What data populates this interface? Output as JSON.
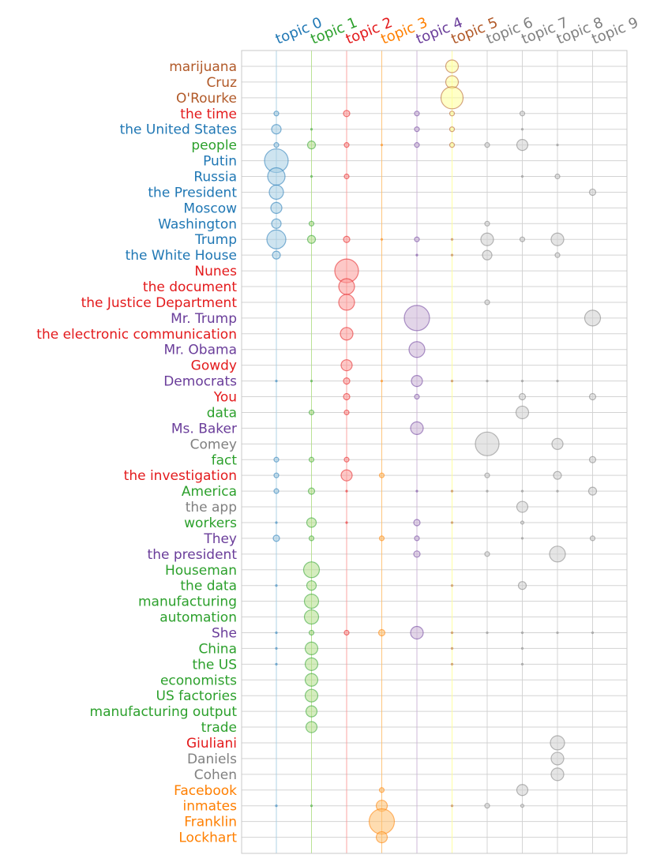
{
  "chart_data": {
    "type": "scatter",
    "grid": true,
    "topics": [
      {
        "label": "topic 0",
        "color": "#1f77b4",
        "fill": "#a6cee3"
      },
      {
        "label": "topic 1",
        "color": "#2ca02c",
        "fill": "#b2df8a"
      },
      {
        "label": "topic 2",
        "color": "#e31a1c",
        "fill": "#fb9a99"
      },
      {
        "label": "topic 3",
        "color": "#ff7f00",
        "fill": "#fdbf6f"
      },
      {
        "label": "topic 4",
        "color": "#6a3d9a",
        "fill": "#cab2d6"
      },
      {
        "label": "topic 5",
        "color": "#b15928",
        "fill": "#ffff99"
      },
      {
        "label": "topic 6",
        "color": "#808080",
        "fill": "#d0d0d0"
      },
      {
        "label": "topic 7",
        "color": "#808080",
        "fill": "#d0d0d0"
      },
      {
        "label": "topic 8",
        "color": "#808080",
        "fill": "#d0d0d0"
      },
      {
        "label": "topic 9",
        "color": "#808080",
        "fill": "#d0d0d0"
      }
    ],
    "terms": [
      {
        "label": "marijuana",
        "topic": 5,
        "weights": [
          0,
          0,
          0,
          0,
          0,
          8,
          0,
          0,
          0,
          0
        ]
      },
      {
        "label": "Cruz",
        "topic": 5,
        "weights": [
          0,
          0,
          0,
          0,
          0,
          8,
          0,
          0,
          0,
          0
        ]
      },
      {
        "label": "O'Rourke",
        "topic": 5,
        "weights": [
          0,
          0,
          0,
          0,
          0,
          14,
          0,
          0,
          0,
          0
        ]
      },
      {
        "label": "the time",
        "topic": 2,
        "weights": [
          3,
          0,
          4,
          0,
          3,
          3,
          0,
          3,
          0,
          0
        ]
      },
      {
        "label": "the United States",
        "topic": 0,
        "weights": [
          6,
          1,
          0,
          0,
          3,
          3,
          0,
          1,
          0,
          0
        ]
      },
      {
        "label": "people",
        "topic": 1,
        "weights": [
          3,
          5,
          3,
          1,
          3,
          3,
          3,
          7,
          1,
          0
        ]
      },
      {
        "label": "Putin",
        "topic": 0,
        "weights": [
          15,
          0,
          0,
          0,
          0,
          0,
          0,
          0,
          0,
          0
        ]
      },
      {
        "label": "Russia",
        "topic": 0,
        "weights": [
          11,
          1,
          3,
          0,
          0,
          0,
          0,
          1,
          3,
          0
        ]
      },
      {
        "label": "the President",
        "topic": 0,
        "weights": [
          9,
          0,
          0,
          0,
          0,
          0,
          0,
          0,
          0,
          4
        ]
      },
      {
        "label": "Moscow",
        "topic": 0,
        "weights": [
          7,
          0,
          0,
          0,
          0,
          0,
          0,
          0,
          0,
          0
        ]
      },
      {
        "label": "Washington",
        "topic": 0,
        "weights": [
          6,
          3,
          0,
          0,
          0,
          0,
          3,
          0,
          0,
          0
        ]
      },
      {
        "label": "Trump",
        "topic": 0,
        "weights": [
          12,
          5,
          4,
          1,
          3,
          1,
          8,
          3,
          8,
          0
        ]
      },
      {
        "label": "the White House",
        "topic": 0,
        "weights": [
          5,
          0,
          0,
          0,
          1,
          1,
          6,
          0,
          3,
          0
        ]
      },
      {
        "label": "Nunes",
        "topic": 2,
        "weights": [
          0,
          0,
          15,
          0,
          0,
          0,
          0,
          0,
          0,
          0
        ]
      },
      {
        "label": "the document",
        "topic": 2,
        "weights": [
          0,
          0,
          10,
          0,
          0,
          0,
          0,
          0,
          0,
          0
        ]
      },
      {
        "label": "the Justice Department",
        "topic": 2,
        "weights": [
          0,
          0,
          10,
          0,
          0,
          0,
          3,
          0,
          0,
          0
        ]
      },
      {
        "label": "Mr. Trump",
        "topic": 4,
        "weights": [
          0,
          0,
          0,
          0,
          16,
          0,
          0,
          0,
          0,
          10
        ]
      },
      {
        "label": "the electronic communication",
        "topic": 2,
        "weights": [
          0,
          0,
          8,
          0,
          0,
          0,
          0,
          0,
          0,
          0
        ]
      },
      {
        "label": "Mr. Obama",
        "topic": 4,
        "weights": [
          0,
          0,
          0,
          0,
          10,
          0,
          0,
          0,
          0,
          0
        ]
      },
      {
        "label": "Gowdy",
        "topic": 2,
        "weights": [
          0,
          0,
          7,
          0,
          0,
          0,
          0,
          0,
          0,
          0
        ]
      },
      {
        "label": "Democrats",
        "topic": 4,
        "weights": [
          1,
          1,
          4,
          1,
          7,
          1,
          1,
          1,
          1,
          0
        ]
      },
      {
        "label": "You",
        "topic": 2,
        "weights": [
          0,
          0,
          4,
          0,
          3,
          0,
          0,
          4,
          0,
          4
        ]
      },
      {
        "label": "data",
        "topic": 1,
        "weights": [
          0,
          3,
          3,
          0,
          0,
          0,
          0,
          8,
          0,
          0
        ]
      },
      {
        "label": "Ms. Baker",
        "topic": 4,
        "weights": [
          0,
          0,
          0,
          0,
          8,
          0,
          0,
          0,
          0,
          0
        ]
      },
      {
        "label": "Comey",
        "topic": 6,
        "weights": [
          0,
          0,
          0,
          0,
          0,
          0,
          15,
          0,
          7,
          0
        ]
      },
      {
        "label": "fact",
        "topic": 1,
        "weights": [
          3,
          3,
          3,
          0,
          0,
          0,
          0,
          0,
          0,
          4
        ]
      },
      {
        "label": "the investigation",
        "topic": 2,
        "weights": [
          3,
          0,
          7,
          3,
          0,
          0,
          3,
          0,
          5,
          0
        ]
      },
      {
        "label": "America",
        "topic": 1,
        "weights": [
          3,
          4,
          1,
          0,
          1,
          1,
          1,
          1,
          1,
          5
        ]
      },
      {
        "label": "the app",
        "topic": 6,
        "weights": [
          0,
          0,
          0,
          0,
          0,
          0,
          0,
          7,
          0,
          0
        ]
      },
      {
        "label": "workers",
        "topic": 1,
        "weights": [
          1,
          6,
          1,
          0,
          4,
          1,
          0,
          2,
          0,
          0
        ]
      },
      {
        "label": "They",
        "topic": 4,
        "weights": [
          4,
          3,
          0,
          3,
          3,
          0,
          0,
          1,
          0,
          3
        ]
      },
      {
        "label": "the president",
        "topic": 4,
        "weights": [
          0,
          0,
          0,
          0,
          4,
          0,
          3,
          0,
          10,
          0
        ]
      },
      {
        "label": "Houseman",
        "topic": 1,
        "weights": [
          0,
          10,
          0,
          0,
          0,
          0,
          0,
          0,
          0,
          0
        ]
      },
      {
        "label": "the data",
        "topic": 1,
        "weights": [
          1,
          6,
          0,
          0,
          0,
          1,
          0,
          5,
          0,
          0
        ]
      },
      {
        "label": "manufacturing",
        "topic": 1,
        "weights": [
          0,
          9,
          0,
          0,
          0,
          0,
          0,
          0,
          0,
          0
        ]
      },
      {
        "label": "automation",
        "topic": 1,
        "weights": [
          0,
          9,
          0,
          0,
          0,
          0,
          0,
          0,
          0,
          0
        ]
      },
      {
        "label": "She",
        "topic": 4,
        "weights": [
          1,
          3,
          3,
          4,
          8,
          1,
          1,
          1,
          1,
          1
        ]
      },
      {
        "label": "China",
        "topic": 1,
        "weights": [
          1,
          8,
          0,
          0,
          0,
          1,
          0,
          1,
          0,
          0
        ]
      },
      {
        "label": "the US",
        "topic": 1,
        "weights": [
          1,
          8,
          0,
          0,
          0,
          1,
          0,
          1,
          0,
          0
        ]
      },
      {
        "label": "economists",
        "topic": 1,
        "weights": [
          0,
          8,
          0,
          0,
          0,
          0,
          0,
          0,
          0,
          0
        ]
      },
      {
        "label": "US factories",
        "topic": 1,
        "weights": [
          0,
          8,
          0,
          0,
          0,
          0,
          0,
          0,
          0,
          0
        ]
      },
      {
        "label": "manufacturing output",
        "topic": 1,
        "weights": [
          0,
          7,
          0,
          0,
          0,
          0,
          0,
          0,
          0,
          0
        ]
      },
      {
        "label": "trade",
        "topic": 1,
        "weights": [
          0,
          7,
          0,
          0,
          0,
          0,
          0,
          0,
          0,
          0
        ]
      },
      {
        "label": "Giuliani",
        "topic": 2,
        "weights": [
          0,
          0,
          0,
          0,
          0,
          0,
          0,
          0,
          9,
          0
        ]
      },
      {
        "label": "Daniels",
        "topic": 6,
        "weights": [
          0,
          0,
          0,
          0,
          0,
          0,
          0,
          0,
          8,
          0
        ]
      },
      {
        "label": "Cohen",
        "topic": 6,
        "weights": [
          0,
          0,
          0,
          0,
          0,
          0,
          0,
          0,
          8,
          0
        ]
      },
      {
        "label": "Facebook",
        "topic": 3,
        "weights": [
          0,
          0,
          0,
          3,
          0,
          0,
          0,
          7,
          0,
          0
        ]
      },
      {
        "label": "inmates",
        "topic": 3,
        "weights": [
          1,
          1,
          0,
          7,
          0,
          1,
          3,
          2,
          0,
          0
        ]
      },
      {
        "label": "Franklin",
        "topic": 3,
        "weights": [
          0,
          0,
          0,
          16,
          0,
          0,
          0,
          0,
          0,
          0
        ]
      },
      {
        "label": "Lockhart",
        "topic": 3,
        "weights": [
          0,
          0,
          0,
          7,
          0,
          0,
          0,
          0,
          0,
          0
        ]
      }
    ]
  }
}
